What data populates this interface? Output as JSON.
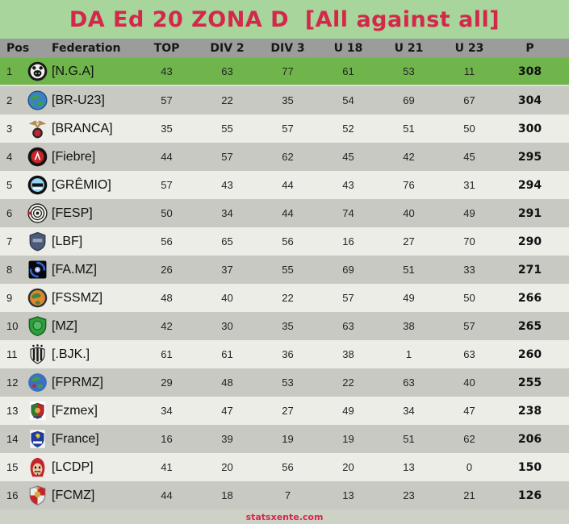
{
  "colors": {
    "background_green": "#a7d59b",
    "accent_crimson": "#d4284b",
    "header_gray": "#9c9c9c",
    "row_highlight_green": "#6fb54c",
    "row_gray": "#c8c9c2",
    "row_light": "#ecede7",
    "footer_band": "#ced2c6"
  },
  "footer": {
    "link": "statsxente.com"
  },
  "chart_data": {
    "type": "table",
    "title": "DA Ed 20 ZONA D  [All against all]",
    "columns": [
      "Pos",
      "Federation",
      "TOP",
      "DIV 2",
      "DIV 3",
      "U 18",
      "U 21",
      "U 23",
      "P"
    ],
    "highlight_row": 1,
    "rows": [
      {
        "pos": 1,
        "federation": "[N.G.A]",
        "values": [
          43,
          63,
          77,
          61,
          53,
          11
        ],
        "points": 308,
        "highlight": true,
        "icon": {
          "name": "panda-badge",
          "c": [
            "#161616",
            "#f2f2ec"
          ]
        }
      },
      {
        "pos": 2,
        "federation": "[BR-U23]",
        "values": [
          57,
          22,
          35,
          54,
          69,
          67
        ],
        "points": 304,
        "highlight": false,
        "icon": {
          "name": "earth-globe",
          "c": [
            "#3b82c4",
            "#3e9e44",
            "#1d4e7a"
          ]
        }
      },
      {
        "pos": 3,
        "federation": "[BRANCA]",
        "values": [
          35,
          55,
          57,
          52,
          51,
          50
        ],
        "points": 300,
        "highlight": false,
        "icon": {
          "name": "eagle-badge",
          "c": [
            "#b08d57",
            "#23232a",
            "#c0262c"
          ]
        }
      },
      {
        "pos": 4,
        "federation": "[Fiebre]",
        "values": [
          44,
          57,
          62,
          45,
          42,
          45
        ],
        "points": 295,
        "highlight": false,
        "icon": {
          "name": "fiebre-badge",
          "c": [
            "#141414",
            "#c8232b",
            "#ffffff"
          ]
        }
      },
      {
        "pos": 5,
        "federation": "[GRÊMIO]",
        "values": [
          57,
          43,
          44,
          43,
          76,
          31
        ],
        "points": 294,
        "highlight": false,
        "icon": {
          "name": "gremio-badge",
          "c": [
            "#101010",
            "#8fd4f0",
            "#ffffff"
          ]
        }
      },
      {
        "pos": 6,
        "federation": "[FESP]",
        "values": [
          50,
          34,
          44,
          74,
          40,
          49
        ],
        "points": 291,
        "highlight": false,
        "icon": {
          "name": "fesp-badge",
          "c": [
            "#f5f5f0",
            "#1a1a1a",
            "#c0262c"
          ]
        }
      },
      {
        "pos": 7,
        "federation": "[LBF]",
        "values": [
          56,
          65,
          56,
          16,
          27,
          70
        ],
        "points": 290,
        "highlight": false,
        "icon": {
          "name": "lbf-shield",
          "c": [
            "#4a5a78",
            "#2b3750",
            "#9aa4b8"
          ]
        }
      },
      {
        "pos": 8,
        "federation": "[FA.MZ]",
        "values": [
          26,
          37,
          55,
          69,
          51,
          33
        ],
        "points": 271,
        "highlight": false,
        "icon": {
          "name": "galaxy-square",
          "c": [
            "#07070f",
            "#2e6bdc",
            "#9db8ff"
          ]
        }
      },
      {
        "pos": 9,
        "federation": "[FSSMZ]",
        "values": [
          48,
          40,
          22,
          57,
          49,
          50
        ],
        "points": 266,
        "highlight": false,
        "icon": {
          "name": "fssmz-globe",
          "c": [
            "#26323a",
            "#e1862f",
            "#3e8a3c"
          ]
        }
      },
      {
        "pos": 10,
        "federation": "[MZ]",
        "values": [
          42,
          30,
          35,
          63,
          38,
          57
        ],
        "points": 265,
        "highlight": false,
        "icon": {
          "name": "mz-shield",
          "c": [
            "#2f9e3f",
            "#17641f",
            "#57b863"
          ]
        }
      },
      {
        "pos": 11,
        "federation": "[.BJK.]",
        "values": [
          61,
          61,
          36,
          38,
          1,
          63
        ],
        "points": 260,
        "highlight": false,
        "icon": {
          "name": "bjk-crest",
          "c": [
            "#f4f4f0",
            "#1a1a1a"
          ]
        }
      },
      {
        "pos": 12,
        "federation": "[FPRMZ]",
        "values": [
          29,
          48,
          53,
          22,
          63,
          40
        ],
        "points": 255,
        "highlight": false,
        "icon": {
          "name": "fprmz-globe",
          "c": [
            "#3b6fc4",
            "#3e9e44",
            "#c0262c"
          ]
        }
      },
      {
        "pos": 13,
        "federation": "[Fzmex]",
        "values": [
          34,
          47,
          27,
          49,
          34,
          47
        ],
        "points": 238,
        "highlight": false,
        "icon": {
          "name": "fzmex-crest",
          "c": [
            "#ffffff",
            "#c0262c",
            "#2f7a34",
            "#d8a93c"
          ]
        }
      },
      {
        "pos": 14,
        "federation": "[France]",
        "values": [
          16,
          39,
          19,
          19,
          51,
          62
        ],
        "points": 206,
        "highlight": false,
        "icon": {
          "name": "france-shield",
          "c": [
            "#1d3c9e",
            "#e8c33c",
            "#ffffff"
          ]
        }
      },
      {
        "pos": 15,
        "federation": "[LCDP]",
        "values": [
          41,
          20,
          56,
          20,
          13,
          0
        ],
        "points": 150,
        "highlight": false,
        "icon": {
          "name": "dali-mask",
          "c": [
            "#c2252c",
            "#ecc9a2",
            "#1a1a1a"
          ]
        }
      },
      {
        "pos": 16,
        "federation": "[FCMZ]",
        "values": [
          44,
          18,
          7,
          13,
          23,
          21
        ],
        "points": 126,
        "highlight": false,
        "icon": {
          "name": "fcmz-crest",
          "c": [
            "#ececec",
            "#c0262c",
            "#d8a93c",
            "#8a8a8a"
          ]
        }
      }
    ]
  }
}
